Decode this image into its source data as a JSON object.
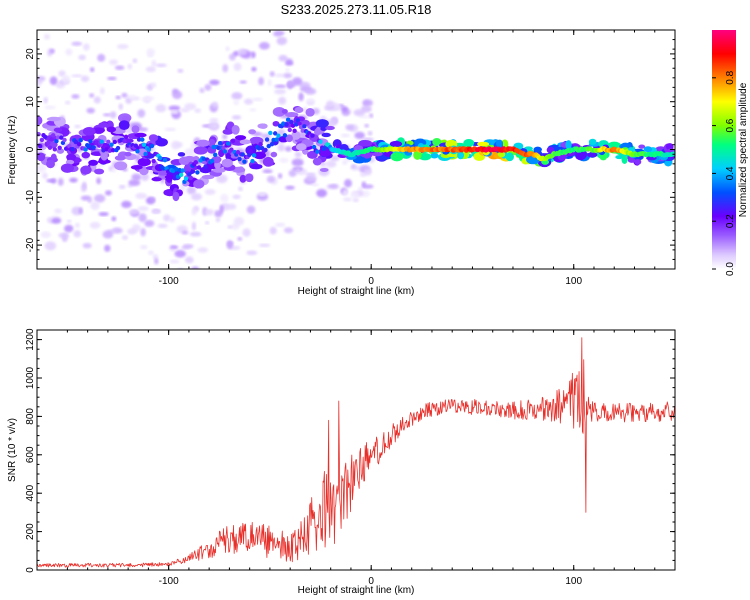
{
  "figure_title": "S233.2025.273.11.05.R18",
  "chart_data": [
    {
      "type": "heatmap",
      "title": "S233.2025.273.11.05.R18",
      "xlabel": "Height of straight line (km)",
      "ylabel": "Frequency (Hz)",
      "xlim": [
        -165,
        150
      ],
      "ylim": [
        -25,
        25
      ],
      "xticks": [
        -100,
        0,
        100
      ],
      "yticks": [
        -20,
        -10,
        0,
        10,
        20
      ],
      "colorbar": {
        "label": "Normalized spectral amplitude",
        "range": [
          0,
          1
        ],
        "ticks": [
          0.0,
          0.2,
          0.4,
          0.6,
          0.8
        ],
        "tick_labels": [
          "0.0",
          "0.2",
          "0.4",
          "0.6",
          "0.8"
        ],
        "colormap": [
          "#ffffff",
          "#dcc8ff",
          "#9a5cff",
          "#6a00ff",
          "#0050ff",
          "#00d0ff",
          "#00ff80",
          "#80ff00",
          "#ffff00",
          "#ff8000",
          "#ff0000",
          "#ff0080"
        ]
      },
      "ridge": {
        "x": [
          -165,
          -150,
          -135,
          -120,
          -110,
          -100,
          -92,
          -85,
          -78,
          -70,
          -62,
          -55,
          -48,
          -40,
          -33,
          -27,
          -20,
          -10,
          0,
          10,
          20,
          40,
          60,
          70,
          75,
          80,
          85,
          90,
          100,
          110,
          120,
          130,
          150
        ],
        "freq": [
          2,
          1,
          0,
          2,
          0,
          -4,
          -6,
          -3,
          -1,
          1,
          -2,
          0,
          3,
          5,
          5,
          1,
          0,
          -1,
          0,
          0,
          0,
          0,
          0,
          0,
          -1,
          -1,
          -2,
          -1,
          0,
          0,
          0,
          -1,
          -1
        ],
        "amp": [
          0.3,
          0.3,
          0.35,
          0.35,
          0.4,
          0.45,
          0.4,
          0.35,
          0.35,
          0.35,
          0.35,
          0.35,
          0.4,
          0.3,
          0.3,
          0.4,
          0.45,
          0.5,
          0.55,
          0.7,
          0.8,
          0.85,
          0.95,
          0.9,
          0.85,
          0.8,
          0.7,
          0.6,
          0.55,
          0.6,
          0.85,
          0.6,
          0.5
        ]
      }
    },
    {
      "type": "line",
      "xlabel": "Height of straight line (km)",
      "ylabel": "SNR (10 * v/v)",
      "xlim": [
        -165,
        150
      ],
      "ylim": [
        0,
        1250
      ],
      "xticks": [
        -100,
        0,
        100
      ],
      "yticks": [
        0,
        200,
        400,
        600,
        800,
        1000,
        1200
      ],
      "color": "#e8302b",
      "series": [
        {
          "name": "SNR",
          "x": [
            -165,
            -140,
            -120,
            -100,
            -90,
            -80,
            -70,
            -60,
            -50,
            -40,
            -35,
            -30,
            -25,
            -20,
            -15,
            -10,
            -5,
            0,
            5,
            10,
            15,
            20,
            25,
            30,
            40,
            50,
            60,
            70,
            80,
            90,
            95,
            100,
            103,
            105,
            107,
            110,
            120,
            130,
            140,
            150
          ],
          "center": [
            25,
            25,
            25,
            30,
            60,
            110,
            170,
            160,
            150,
            110,
            150,
            200,
            280,
            330,
            400,
            460,
            540,
            590,
            640,
            700,
            750,
            790,
            820,
            840,
            850,
            850,
            840,
            830,
            840,
            850,
            860,
            870,
            860,
            850,
            840,
            830,
            820,
            820,
            820,
            830
          ],
          "jitter": [
            10,
            10,
            10,
            10,
            20,
            50,
            80,
            90,
            90,
            70,
            100,
            160,
            220,
            260,
            200,
            180,
            110,
            90,
            70,
            60,
            50,
            40,
            40,
            40,
            40,
            40,
            40,
            50,
            60,
            80,
            100,
            180,
            250,
            250,
            120,
            60,
            50,
            50,
            50,
            50
          ]
        }
      ],
      "spikes": [
        {
          "x": -21,
          "y": 780
        },
        {
          "x": -16,
          "y": 880
        },
        {
          "x": 104,
          "y": 1210
        },
        {
          "x": 106,
          "y": 300
        }
      ]
    }
  ]
}
